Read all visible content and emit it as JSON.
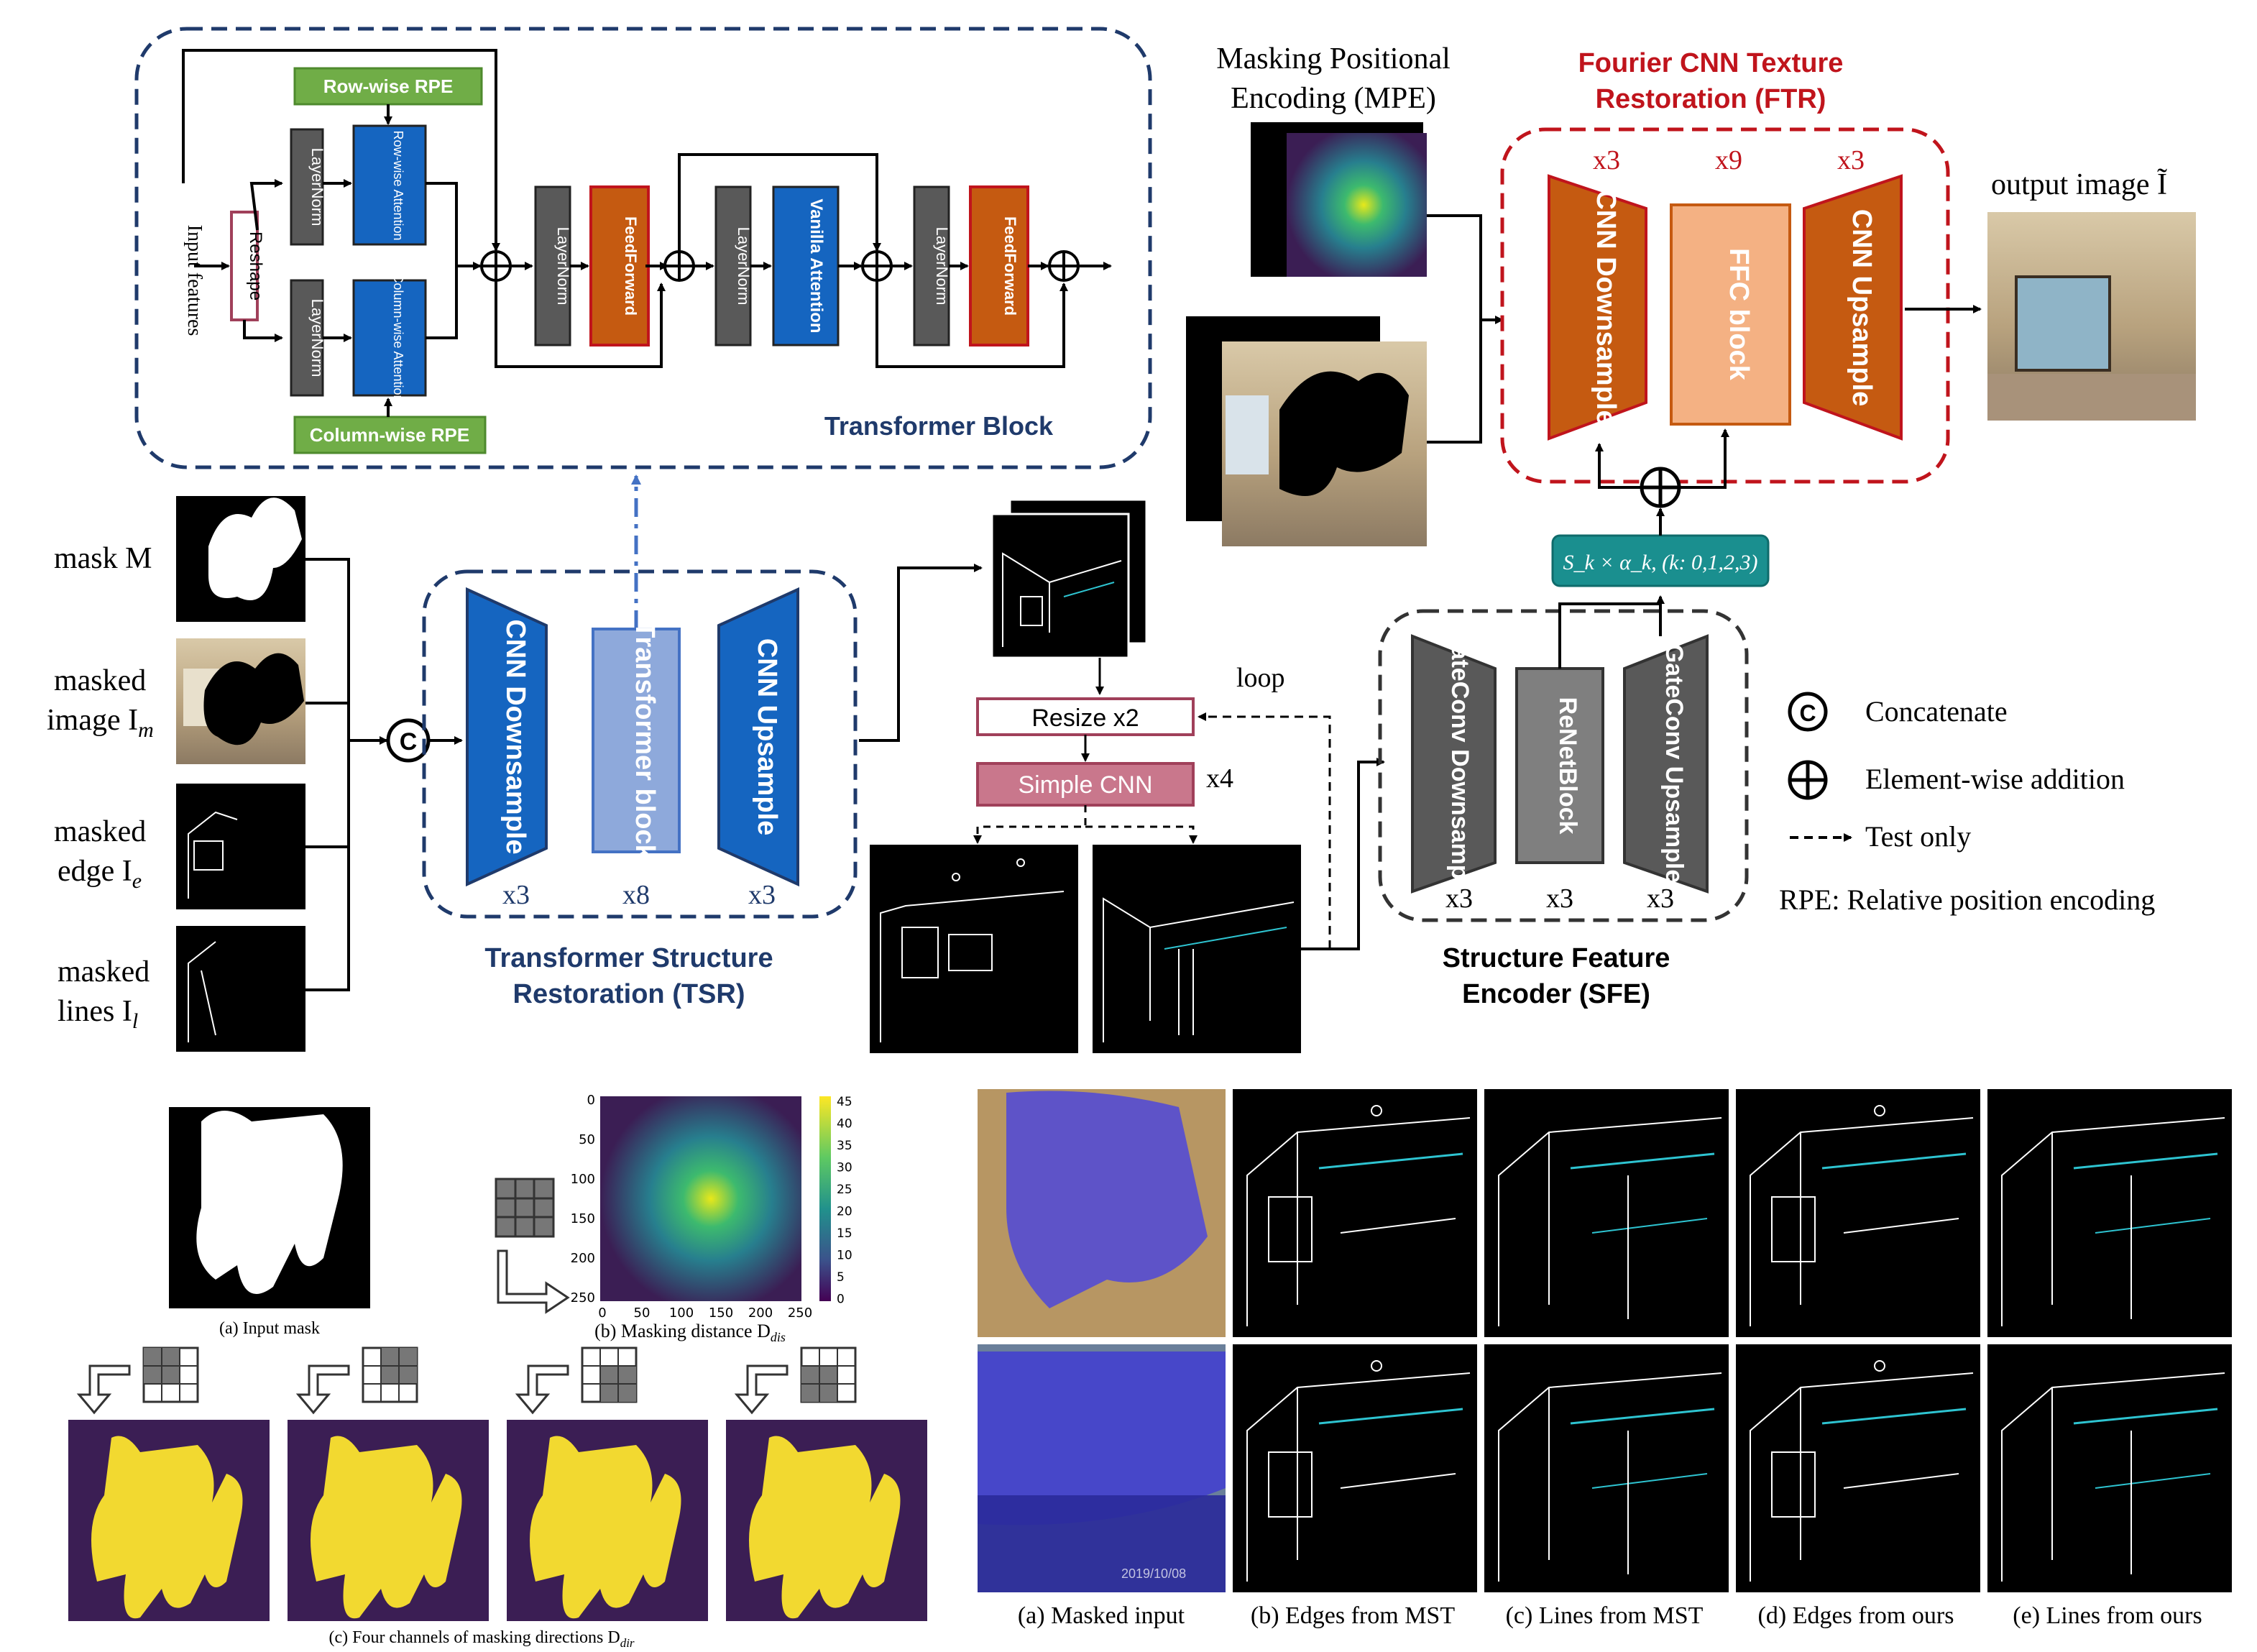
{
  "transformer_block": {
    "title": "Transformer Block",
    "input_label": "Input features",
    "reshape": "Reshape",
    "row_rpe": "Row-wise RPE",
    "col_rpe": "Column-wise RPE",
    "layernorm": "LayerNorm",
    "row_attention": "Row-wise Attention",
    "col_attention": "Column-wise Attention",
    "feedforward": "FeedForward",
    "vanilla_attention": "Vanilla Attention"
  },
  "tsr": {
    "title_line1": "Transformer Structure",
    "title_line2": "Restoration (TSR)",
    "cnn_down": "CNN Downsample",
    "transformer": "Transformer block",
    "cnn_up": "CNN Upsample",
    "mult_down": "x3",
    "mult_trans": "x8",
    "mult_up": "x3"
  },
  "inputs": {
    "mask": "mask M",
    "masked_image_1": "masked",
    "masked_image_2": "image I",
    "masked_image_sub": "m",
    "masked_edge_1": "masked",
    "masked_edge_2": "edge I",
    "masked_edge_sub": "e",
    "masked_lines_1": "masked",
    "masked_lines_2": "lines I",
    "masked_lines_sub": "l",
    "concat_symbol": "C"
  },
  "upsampler": {
    "resize": "Resize x2",
    "simple_cnn": "Simple CNN",
    "loop": "loop",
    "mult": "x4"
  },
  "mpe": {
    "line1": "Masking Positional",
    "line2": "Encoding (MPE)"
  },
  "ftr": {
    "title_line1": "Fourier CNN Texture",
    "title_line2": "Restoration (FTR)",
    "cnn_down": "CNN Downsample",
    "ffc": "FFC block",
    "cnn_up": "CNN Upsample",
    "mult_down": "x3",
    "mult_ffc": "x9",
    "mult_up": "x3",
    "output": "output image Ĩ"
  },
  "sfe": {
    "title_line1": "Structure Feature",
    "title_line2": "Encoder (SFE)",
    "gate_down": "GateConv Downsample",
    "resnet": "ReNetBlock",
    "gate_up": "GateConv Upsample",
    "mult_a": "x3",
    "mult_b": "x3",
    "mult_c": "x3",
    "fusion": "S_k × α_k, (k: 0,1,2,3)"
  },
  "legend": {
    "concat": "Concatenate",
    "add": "Element-wise addition",
    "test": "Test only",
    "rpe": "RPE: Relative position encoding"
  },
  "bottom_left": {
    "input_mask": "(a) Input mask",
    "masking_distance": "(b) Masking distance D",
    "masking_distance_sub": "dis",
    "four_channels": "(c) Four channels of masking directions D",
    "four_channels_sub": "dir",
    "heat_yticks": [
      "0",
      "50",
      "100",
      "150",
      "200",
      "250"
    ],
    "heat_xticks": [
      "0",
      "50",
      "100",
      "150",
      "200",
      "250"
    ],
    "cbar_ticks": [
      "45",
      "40",
      "35",
      "30",
      "25",
      "20",
      "15",
      "10",
      "5",
      "0"
    ]
  },
  "bottom_right": {
    "captions": [
      "(a) Masked input",
      "(b) Edges from MST",
      "(c) Lines from MST",
      "(d) Edges from ours",
      "(e) Lines from ours"
    ],
    "timestamp": "2019/10/08"
  },
  "colors": {
    "navy": "#1f3a6b",
    "red": "#c0141c",
    "blue": "#1565c0",
    "light_blue": "#8ea9db",
    "orange": "#c55a11",
    "light_orange": "#f4b183",
    "green": "#70ad47",
    "teal": "#1a8f8f",
    "pink": "#c9778c",
    "dark_grey": "#595959",
    "mask_purple": "#3b1e54",
    "mask_yellow": "#f2d930"
  }
}
